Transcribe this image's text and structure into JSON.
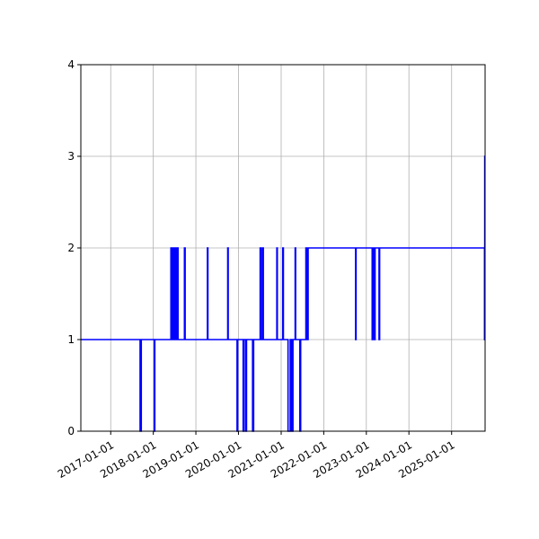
{
  "chart_data": {
    "type": "line",
    "title": "",
    "xlabel": "",
    "ylabel": "",
    "x_axis": "date",
    "xlim": [
      "2016-04-20",
      "2025-10-15"
    ],
    "ylim": [
      0,
      4
    ],
    "grid": true,
    "legend": "none",
    "x_ticks": [
      "2017-01-01",
      "2018-01-01",
      "2019-01-01",
      "2020-01-01",
      "2021-01-01",
      "2022-01-01",
      "2023-01-01",
      "2024-01-01",
      "2025-01-01"
    ],
    "y_ticks": [
      0,
      1,
      2,
      3,
      4
    ],
    "series": [
      {
        "color": "#0000ff",
        "step": true,
        "points": [
          {
            "x": "2016-04-20",
            "y": 1
          },
          {
            "x": "2017-09-10",
            "y": 0
          },
          {
            "x": "2017-09-20",
            "y": 1
          },
          {
            "x": "2018-01-10",
            "y": 0
          },
          {
            "x": "2018-01-14",
            "y": 1
          },
          {
            "x": "2018-06-01",
            "y": 2
          },
          {
            "x": "2018-06-10",
            "y": 1
          },
          {
            "x": "2018-06-20",
            "y": 2
          },
          {
            "x": "2018-07-01",
            "y": 1
          },
          {
            "x": "2018-07-08",
            "y": 2
          },
          {
            "x": "2018-07-15",
            "y": 1
          },
          {
            "x": "2018-07-22",
            "y": 2
          },
          {
            "x": "2018-08-01",
            "y": 1
          },
          {
            "x": "2018-09-25",
            "y": 2
          },
          {
            "x": "2018-10-01",
            "y": 1
          },
          {
            "x": "2019-04-10",
            "y": 2
          },
          {
            "x": "2019-04-14",
            "y": 1
          },
          {
            "x": "2019-10-01",
            "y": 2
          },
          {
            "x": "2019-10-05",
            "y": 1
          },
          {
            "x": "2019-12-20",
            "y": 0
          },
          {
            "x": "2019-12-25",
            "y": 1
          },
          {
            "x": "2020-02-10",
            "y": 0
          },
          {
            "x": "2020-02-15",
            "y": 1
          },
          {
            "x": "2020-03-01",
            "y": 0
          },
          {
            "x": "2020-03-10",
            "y": 1
          },
          {
            "x": "2020-05-01",
            "y": 0
          },
          {
            "x": "2020-05-10",
            "y": 1
          },
          {
            "x": "2020-07-05",
            "y": 2
          },
          {
            "x": "2020-07-12",
            "y": 1
          },
          {
            "x": "2020-07-25",
            "y": 2
          },
          {
            "x": "2020-08-01",
            "y": 1
          },
          {
            "x": "2020-11-25",
            "y": 2
          },
          {
            "x": "2020-11-29",
            "y": 1
          },
          {
            "x": "2021-01-15",
            "y": 2
          },
          {
            "x": "2021-01-20",
            "y": 1
          },
          {
            "x": "2021-03-01",
            "y": 0
          },
          {
            "x": "2021-03-20",
            "y": 1
          },
          {
            "x": "2021-04-01",
            "y": 0
          },
          {
            "x": "2021-04-12",
            "y": 1
          },
          {
            "x": "2021-05-01",
            "y": 2
          },
          {
            "x": "2021-05-05",
            "y": 1
          },
          {
            "x": "2021-06-10",
            "y": 0
          },
          {
            "x": "2021-06-17",
            "y": 1
          },
          {
            "x": "2021-08-01",
            "y": 2
          },
          {
            "x": "2021-08-10",
            "y": 1
          },
          {
            "x": "2021-08-20",
            "y": 2
          },
          {
            "x": "2022-10-01",
            "y": 1
          },
          {
            "x": "2022-10-05",
            "y": 2
          },
          {
            "x": "2023-02-20",
            "y": 1
          },
          {
            "x": "2023-02-27",
            "y": 2
          },
          {
            "x": "2023-03-10",
            "y": 1
          },
          {
            "x": "2023-03-17",
            "y": 2
          },
          {
            "x": "2023-04-20",
            "y": 1
          },
          {
            "x": "2023-04-25",
            "y": 2
          },
          {
            "x": "2025-10-10",
            "y": 1
          },
          {
            "x": "2025-10-12",
            "y": 3
          },
          {
            "x": "2025-10-15",
            "y": 3
          }
        ]
      }
    ]
  }
}
